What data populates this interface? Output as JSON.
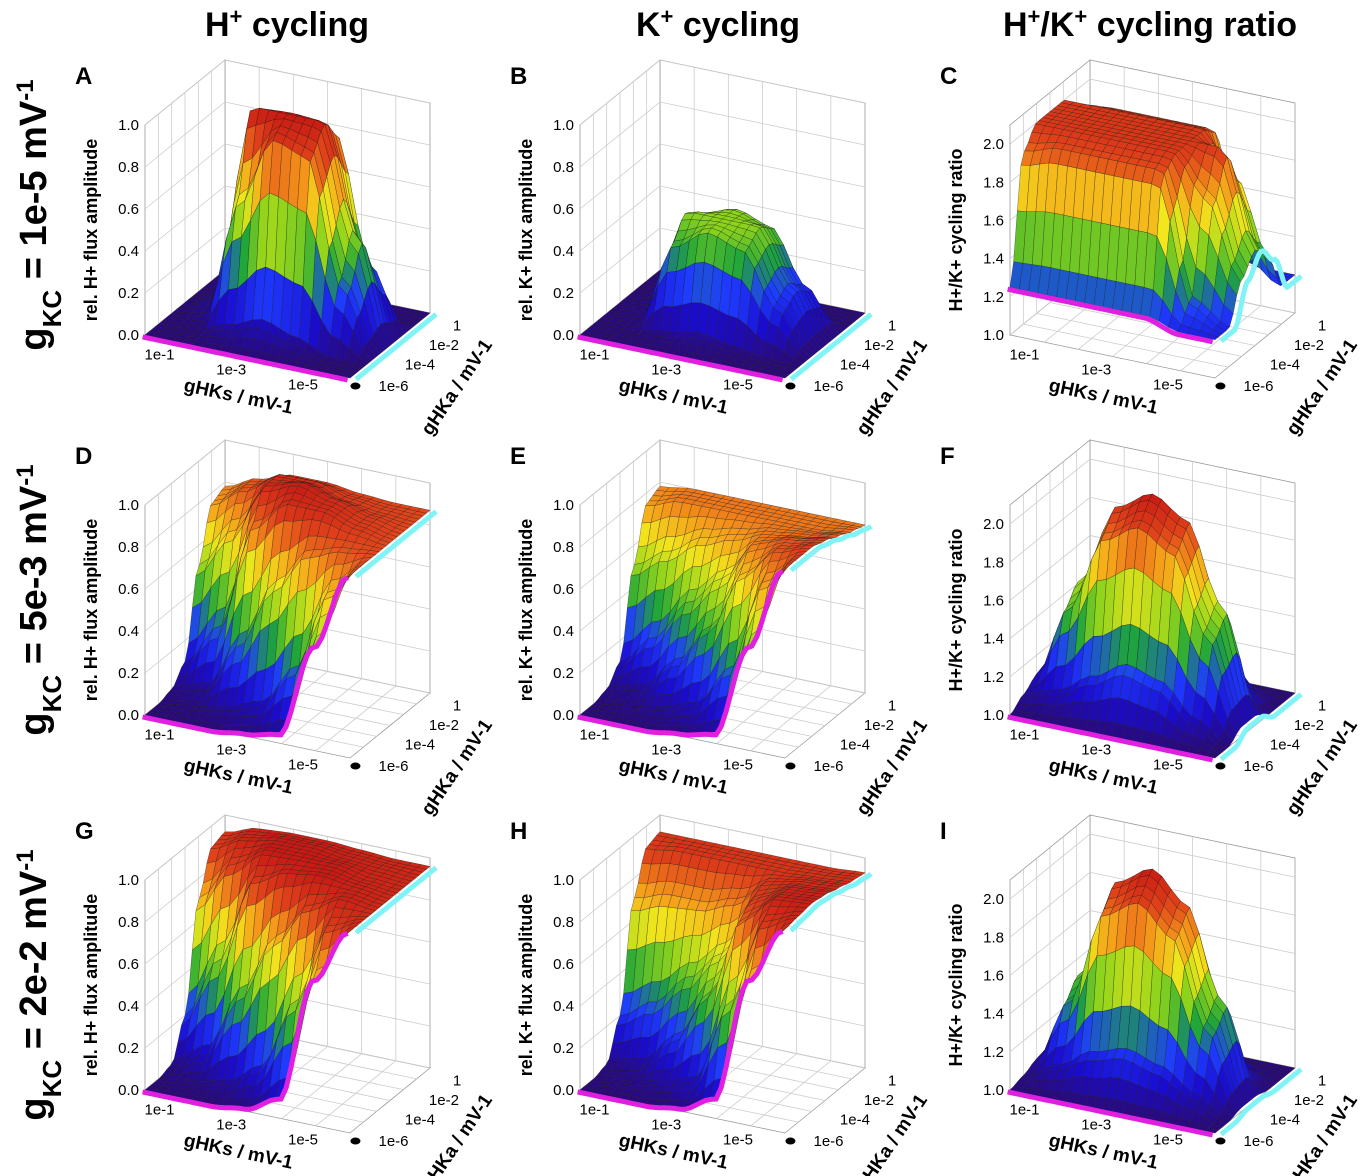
{
  "figure": {
    "column_titles": [
      {
        "base": "H",
        "sup": "+",
        "rest": " cycling"
      },
      {
        "base": "K",
        "sup": "+",
        "rest": " cycling"
      },
      {
        "base": "H",
        "sup": "+",
        "mid": "/K",
        "sup2": "+",
        "rest": " cycling ratio"
      }
    ],
    "row_titles": [
      {
        "g": "g",
        "sub": "KC",
        "eq": " = 1e-5 mV",
        "sup": "-1"
      },
      {
        "g": "g",
        "sub": "KC",
        "eq": " = 5e-3 mV",
        "sup": "-1"
      },
      {
        "g": "g",
        "sub": "KC",
        "eq": " = 2e-2 mV",
        "sup": "-1"
      }
    ],
    "colors": {
      "surface_scale": [
        "#2a0a78",
        "#1a0ccf",
        "#1e3cff",
        "#1fa53a",
        "#8fd41c",
        "#f2e61c",
        "#f59a1a",
        "#e0421a",
        "#c81a14"
      ],
      "gHKs_line": "#e11fe0",
      "gHKa_line": "#7ff3f5",
      "mesh": "#1a1a1a",
      "grid": "#cccccc"
    }
  },
  "chart_data": [
    {
      "panel": "A",
      "type": "surface",
      "zlabel": "rel. H+ flux amplitude",
      "xlabel": "gHKs / mV-1",
      "ylabel": "gHKa / mV-1",
      "xticks": [
        "1e-1",
        "1e-3",
        "1e-5"
      ],
      "yticks": [
        "1e-6",
        "1e-4",
        "1e-2",
        "1"
      ],
      "zticks": [
        "0.0",
        "0.2",
        "0.4",
        "0.6",
        "0.8",
        "1.0"
      ],
      "zlim": [
        0,
        1
      ],
      "proj_line_x": [
        0,
        0,
        0,
        0,
        0,
        0,
        0
      ],
      "proj_line_y": [
        0,
        0,
        0,
        0,
        0,
        0,
        0
      ],
      "grid_x": [
        -6,
        -5,
        -4,
        -3,
        -2,
        -1,
        0
      ],
      "grid_y": [
        -6,
        -5,
        -4,
        -3,
        -2,
        -1,
        0
      ],
      "z": [
        [
          0,
          0,
          0,
          0,
          0,
          0,
          0
        ],
        [
          0,
          0,
          0.02,
          0.05,
          0.02,
          0,
          0
        ],
        [
          0,
          0.05,
          0.6,
          1.0,
          0.9,
          0.05,
          0
        ],
        [
          0,
          0.1,
          0.95,
          1.0,
          0.95,
          0.1,
          0
        ],
        [
          0,
          0.05,
          0.9,
          1.0,
          0.9,
          0.05,
          0
        ],
        [
          0,
          0,
          0.3,
          0.5,
          0.3,
          0,
          0
        ],
        [
          0,
          0,
          0,
          0,
          0,
          0,
          0
        ]
      ]
    },
    {
      "panel": "B",
      "type": "surface",
      "zlabel": "rel. K+ flux amplitude",
      "xlabel": "gHKs / mV-1",
      "ylabel": "gHKa / mV-1",
      "xticks": [
        "1e-1",
        "1e-3",
        "1e-5"
      ],
      "yticks": [
        "1e-6",
        "1e-4",
        "1e-2",
        "1"
      ],
      "zticks": [
        "0.0",
        "0.2",
        "0.4",
        "0.6",
        "0.8",
        "1.0"
      ],
      "zlim": [
        0,
        1
      ],
      "grid_x": [
        -6,
        -5,
        -4,
        -3,
        -2,
        -1,
        0
      ],
      "grid_y": [
        -6,
        -5,
        -4,
        -3,
        -2,
        -1,
        0
      ],
      "z": [
        [
          0,
          0,
          0,
          0,
          0,
          0,
          0
        ],
        [
          0,
          0,
          0.01,
          0.02,
          0.01,
          0,
          0
        ],
        [
          0,
          0.02,
          0.4,
          0.5,
          0.45,
          0.02,
          0
        ],
        [
          0,
          0.05,
          0.5,
          0.5,
          0.5,
          0.05,
          0
        ],
        [
          0,
          0.02,
          0.45,
          0.5,
          0.45,
          0.02,
          0
        ],
        [
          0,
          0,
          0.2,
          0.25,
          0.2,
          0,
          0
        ],
        [
          0,
          0,
          0,
          0,
          0,
          0,
          0
        ]
      ]
    },
    {
      "panel": "C",
      "type": "surface",
      "zlabel": "H+/K+ cycling ratio",
      "xlabel": "gHKs / mV-1",
      "ylabel": "gHKa / mV-1",
      "xticks": [
        "1e-1",
        "1e-3",
        "1e-5"
      ],
      "yticks": [
        "1e-6",
        "1e-4",
        "1e-2",
        "1"
      ],
      "zticks": [
        "1.0",
        "1.2",
        "1.4",
        "1.6",
        "1.8",
        "2.0"
      ],
      "zlim": [
        1.0,
        2.1
      ],
      "grid_x": [
        -6,
        -5,
        -4,
        -3,
        -2,
        -1,
        0
      ],
      "grid_y": [
        -6,
        -5,
        -4,
        -3,
        -2,
        -1,
        0
      ],
      "z": [
        [
          1.25,
          1.9,
          2.0,
          2.0,
          2.0,
          1.9,
          1.25
        ],
        [
          1.25,
          1.95,
          2.0,
          2.0,
          2.0,
          1.95,
          1.25
        ],
        [
          1.25,
          1.95,
          2.0,
          2.0,
          2.0,
          1.95,
          1.25
        ],
        [
          1.25,
          1.95,
          2.0,
          2.0,
          2.0,
          1.95,
          1.25
        ],
        [
          1.25,
          1.95,
          2.0,
          2.0,
          2.0,
          1.95,
          1.25
        ],
        [
          1.2,
          1.3,
          1.8,
          2.0,
          1.8,
          1.3,
          1.2
        ],
        [
          1.2,
          1.2,
          1.4,
          1.5,
          1.4,
          1.2,
          1.2
        ]
      ]
    },
    {
      "panel": "D",
      "type": "surface",
      "zlabel": "rel. H+ flux amplitude",
      "xlabel": "gHKs / mV-1",
      "ylabel": "gHKa / mV-1",
      "xticks": [
        "1e-1",
        "1e-3",
        "1e-5"
      ],
      "yticks": [
        "1e-6",
        "1e-4",
        "1e-2",
        "1"
      ],
      "zticks": [
        "0.0",
        "0.2",
        "0.4",
        "0.6",
        "0.8",
        "1.0"
      ],
      "zlim": [
        0,
        1
      ],
      "grid_x": [
        -6,
        -5,
        -4,
        -3,
        -2,
        -1,
        0
      ],
      "grid_y": [
        -6,
        -5,
        -4,
        -3,
        -2,
        -1,
        0
      ],
      "z": [
        [
          0.0,
          0.0,
          0.02,
          0.1,
          0.5,
          0.75,
          0.78
        ],
        [
          0.0,
          0.02,
          0.05,
          0.3,
          0.7,
          0.85,
          0.85
        ],
        [
          0.0,
          0.05,
          0.3,
          0.8,
          0.95,
          0.95,
          0.9
        ],
        [
          0.02,
          0.1,
          0.6,
          0.95,
          1.0,
          0.95,
          0.9
        ],
        [
          0.05,
          0.3,
          0.8,
          0.95,
          0.95,
          0.9,
          0.88
        ],
        [
          0.5,
          0.7,
          0.85,
          0.9,
          0.9,
          0.88,
          0.87
        ],
        [
          0.87,
          0.87,
          0.87,
          0.87,
          0.87,
          0.87,
          0.87
        ]
      ]
    },
    {
      "panel": "E",
      "type": "surface",
      "zlabel": "rel. K+ flux amplitude",
      "xlabel": "gHKs / mV-1",
      "ylabel": "gHKa / mV-1",
      "xticks": [
        "1e-1",
        "1e-3",
        "1e-5"
      ],
      "yticks": [
        "1e-6",
        "1e-4",
        "1e-2",
        "1"
      ],
      "zticks": [
        "0.0",
        "0.2",
        "0.4",
        "0.6",
        "0.8",
        "1.0"
      ],
      "zlim": [
        0,
        1
      ],
      "grid_x": [
        -6,
        -5,
        -4,
        -3,
        -2,
        -1,
        0
      ],
      "grid_y": [
        -6,
        -5,
        -4,
        -3,
        -2,
        -1,
        0
      ],
      "z": [
        [
          0.0,
          0.0,
          0.02,
          0.1,
          0.5,
          0.75,
          0.78
        ],
        [
          0.0,
          0.02,
          0.05,
          0.25,
          0.6,
          0.8,
          0.8
        ],
        [
          0.0,
          0.05,
          0.2,
          0.45,
          0.7,
          0.8,
          0.8
        ],
        [
          0.02,
          0.1,
          0.4,
          0.6,
          0.75,
          0.8,
          0.8
        ],
        [
          0.05,
          0.3,
          0.7,
          0.8,
          0.8,
          0.8,
          0.8
        ],
        [
          0.5,
          0.75,
          0.85,
          0.85,
          0.82,
          0.8,
          0.8
        ],
        [
          0.9,
          0.9,
          0.9,
          0.88,
          0.85,
          0.82,
          0.8
        ]
      ]
    },
    {
      "panel": "F",
      "type": "surface",
      "zlabel": "H+/K+ cycling ratio",
      "xlabel": "gHKs / mV-1",
      "ylabel": "gHKa / mV-1",
      "xticks": [
        "1e-1",
        "1e-3",
        "1e-5"
      ],
      "yticks": [
        "1e-6",
        "1e-4",
        "1e-2",
        "1"
      ],
      "zticks": [
        "1.0",
        "1.2",
        "1.4",
        "1.6",
        "1.8",
        "2.0"
      ],
      "zlim": [
        1.0,
        2.1
      ],
      "grid_x": [
        -6,
        -5,
        -4,
        -3,
        -2,
        -1,
        0
      ],
      "grid_y": [
        -6,
        -5,
        -4,
        -3,
        -2,
        -1,
        0
      ],
      "z": [
        [
          1.0,
          1.05,
          1.1,
          1.1,
          1.05,
          1.02,
          1.0
        ],
        [
          1.0,
          1.1,
          1.5,
          1.6,
          1.2,
          1.05,
          1.0
        ],
        [
          1.0,
          1.2,
          1.9,
          2.0,
          1.4,
          1.1,
          1.0
        ],
        [
          1.0,
          1.3,
          2.0,
          2.1,
          1.6,
          1.1,
          1.0
        ],
        [
          1.0,
          1.25,
          1.9,
          2.0,
          1.5,
          1.1,
          1.0
        ],
        [
          1.0,
          1.1,
          1.5,
          1.6,
          1.2,
          1.05,
          1.0
        ],
        [
          1.0,
          1.0,
          1.05,
          1.05,
          1.0,
          1.0,
          1.0
        ]
      ]
    },
    {
      "panel": "G",
      "type": "surface",
      "zlabel": "rel. H+ flux amplitude",
      "xlabel": "gHKs / mV-1",
      "ylabel": "gHKa / mV-1",
      "xticks": [
        "1e-1",
        "1e-3",
        "1e-5"
      ],
      "yticks": [
        "1e-6",
        "1e-4",
        "1e-2",
        "1"
      ],
      "zticks": [
        "0.0",
        "0.2",
        "0.4",
        "0.6",
        "0.8",
        "1.0"
      ],
      "zlim": [
        0,
        1
      ],
      "grid_x": [
        -6,
        -5,
        -4,
        -3,
        -2,
        -1,
        0
      ],
      "grid_y": [
        -6,
        -5,
        -4,
        -3,
        -2,
        -1,
        0
      ],
      "z": [
        [
          0.0,
          0.0,
          0.02,
          0.2,
          0.7,
          0.9,
          0.92
        ],
        [
          0.0,
          0.02,
          0.1,
          0.5,
          0.9,
          0.97,
          0.97
        ],
        [
          0.0,
          0.05,
          0.4,
          0.9,
          1.0,
          1.0,
          0.98
        ],
        [
          0.02,
          0.15,
          0.7,
          0.98,
          1.0,
          1.0,
          0.98
        ],
        [
          0.1,
          0.5,
          0.9,
          1.0,
          1.0,
          0.98,
          0.97
        ],
        [
          0.7,
          0.9,
          0.98,
          0.98,
          0.97,
          0.97,
          0.96
        ],
        [
          0.96,
          0.96,
          0.96,
          0.96,
          0.96,
          0.96,
          0.96
        ]
      ]
    },
    {
      "panel": "H",
      "type": "surface",
      "zlabel": "rel. K+ flux amplitude",
      "xlabel": "gHKs / mV-1",
      "ylabel": "gHKa / mV-1",
      "xticks": [
        "1e-1",
        "1e-3",
        "1e-5"
      ],
      "yticks": [
        "1e-6",
        "1e-4",
        "1e-2",
        "1"
      ],
      "zticks": [
        "0.0",
        "0.2",
        "0.4",
        "0.6",
        "0.8",
        "1.0"
      ],
      "zlim": [
        0,
        1
      ],
      "grid_x": [
        -6,
        -5,
        -4,
        -3,
        -2,
        -1,
        0
      ],
      "grid_y": [
        -6,
        -5,
        -4,
        -3,
        -2,
        -1,
        0
      ],
      "z": [
        [
          0.0,
          0.0,
          0.02,
          0.2,
          0.7,
          0.9,
          0.92
        ],
        [
          0.0,
          0.02,
          0.05,
          0.3,
          0.75,
          0.92,
          0.92
        ],
        [
          0.0,
          0.05,
          0.2,
          0.45,
          0.75,
          0.92,
          0.92
        ],
        [
          0.02,
          0.1,
          0.45,
          0.6,
          0.8,
          0.92,
          0.92
        ],
        [
          0.1,
          0.5,
          0.85,
          0.9,
          0.92,
          0.92,
          0.92
        ],
        [
          0.7,
          0.92,
          0.98,
          0.97,
          0.95,
          0.93,
          0.92
        ],
        [
          0.97,
          0.98,
          0.99,
          0.98,
          0.96,
          0.94,
          0.93
        ]
      ]
    },
    {
      "panel": "I",
      "type": "surface",
      "zlabel": "H+/K+ cycling ratio",
      "xlabel": "gHKs / mV-1",
      "ylabel": "gHKa / mV-1",
      "xticks": [
        "1e-1",
        "1e-3",
        "1e-5"
      ],
      "yticks": [
        "1e-6",
        "1e-4",
        "1e-2",
        "1"
      ],
      "zticks": [
        "1.0",
        "1.2",
        "1.4",
        "1.6",
        "1.8",
        "2.0"
      ],
      "zlim": [
        1.0,
        2.1
      ],
      "grid_x": [
        -6,
        -5,
        -4,
        -3,
        -2,
        -1,
        0
      ],
      "grid_y": [
        -6,
        -5,
        -4,
        -3,
        -2,
        -1,
        0
      ],
      "z": [
        [
          1.0,
          1.02,
          1.05,
          1.05,
          1.02,
          1.0,
          1.0
        ],
        [
          1.0,
          1.1,
          1.4,
          1.5,
          1.15,
          1.02,
          1.0
        ],
        [
          1.0,
          1.2,
          1.9,
          2.0,
          1.35,
          1.05,
          1.0
        ],
        [
          1.0,
          1.25,
          2.0,
          2.1,
          1.5,
          1.05,
          1.0
        ],
        [
          1.0,
          1.2,
          1.85,
          1.95,
          1.4,
          1.05,
          1.0
        ],
        [
          1.0,
          1.1,
          1.4,
          1.5,
          1.15,
          1.02,
          1.0
        ],
        [
          1.0,
          1.0,
          1.02,
          1.02,
          1.0,
          1.0,
          1.0
        ]
      ]
    }
  ]
}
